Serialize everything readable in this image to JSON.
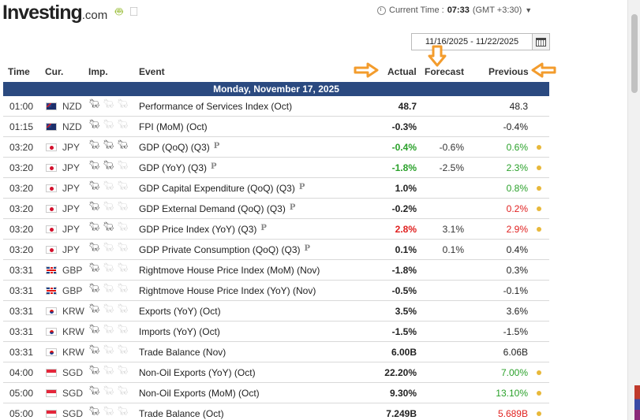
{
  "brand": {
    "name": "Investing",
    "suffix": ".com"
  },
  "os_icons": [
    "android-icon",
    "apple-icon"
  ],
  "current_time": {
    "label": "Current Time :",
    "value": "07:33",
    "timezone": "(GMT +3:30)"
  },
  "date_range": "11/16/2025 - 11/22/2025",
  "columns": {
    "time": "Time",
    "cur": "Cur.",
    "imp": "Imp.",
    "event": "Event",
    "actual": "Actual",
    "forecast": "Forecast",
    "previous": "Previous"
  },
  "day_header": "Monday, November 17, 2025",
  "colors": {
    "header_bg": "#2b4a80",
    "green": "#2aa12a",
    "red": "#e0201f",
    "arrow": "#f39c2d",
    "dot": "#e8b83a"
  },
  "rows": [
    {
      "time": "01:00",
      "currency": "NZD",
      "flag": "nzd",
      "importance": 1,
      "event": "Performance of Services Index (Oct)",
      "prelim": "",
      "actual": "48.7",
      "actual_color": "",
      "forecast": "",
      "previous": "48.3",
      "previous_color": "",
      "dot": false
    },
    {
      "time": "01:15",
      "currency": "NZD",
      "flag": "nzd",
      "importance": 1,
      "event": "FPI (MoM) (Oct)",
      "prelim": "",
      "actual": "-0.3%",
      "actual_color": "",
      "forecast": "",
      "previous": "-0.4%",
      "previous_color": "",
      "dot": false
    },
    {
      "time": "03:20",
      "currency": "JPY",
      "flag": "jpy",
      "importance": 3,
      "event": "GDP (QoQ) (Q3)",
      "prelim": "P",
      "actual": "-0.4%",
      "actual_color": "green",
      "forecast": "-0.6%",
      "previous": "0.6%",
      "previous_color": "green",
      "dot": true
    },
    {
      "time": "03:20",
      "currency": "JPY",
      "flag": "jpy",
      "importance": 2,
      "event": "GDP (YoY) (Q3)",
      "prelim": "P",
      "actual": "-1.8%",
      "actual_color": "green",
      "forecast": "-2.5%",
      "previous": "2.3%",
      "previous_color": "green",
      "dot": true
    },
    {
      "time": "03:20",
      "currency": "JPY",
      "flag": "jpy",
      "importance": 1,
      "event": "GDP Capital Expenditure (QoQ) (Q3)",
      "prelim": "P",
      "actual": "1.0%",
      "actual_color": "",
      "forecast": "",
      "previous": "0.8%",
      "previous_color": "green",
      "dot": true
    },
    {
      "time": "03:20",
      "currency": "JPY",
      "flag": "jpy",
      "importance": 1,
      "event": "GDP External Demand (QoQ) (Q3)",
      "prelim": "P",
      "actual": "-0.2%",
      "actual_color": "",
      "forecast": "",
      "previous": "0.2%",
      "previous_color": "red",
      "dot": true
    },
    {
      "time": "03:20",
      "currency": "JPY",
      "flag": "jpy",
      "importance": 2,
      "event": "GDP Price Index (YoY) (Q3)",
      "prelim": "P",
      "actual": "2.8%",
      "actual_color": "red",
      "forecast": "3.1%",
      "previous": "2.9%",
      "previous_color": "red",
      "dot": true
    },
    {
      "time": "03:20",
      "currency": "JPY",
      "flag": "jpy",
      "importance": 1,
      "event": "GDP Private Consumption (QoQ) (Q3)",
      "prelim": "P",
      "actual": "0.1%",
      "actual_color": "",
      "forecast": "0.1%",
      "previous": "0.4%",
      "previous_color": "",
      "dot": false
    },
    {
      "time": "03:31",
      "currency": "GBP",
      "flag": "gbp",
      "importance": 1,
      "event": "Rightmove House Price Index (MoM) (Nov)",
      "prelim": "",
      "actual": "-1.8%",
      "actual_color": "",
      "forecast": "",
      "previous": "0.3%",
      "previous_color": "",
      "dot": false
    },
    {
      "time": "03:31",
      "currency": "GBP",
      "flag": "gbp",
      "importance": 1,
      "event": "Rightmove House Price Index (YoY) (Nov)",
      "prelim": "",
      "actual": "-0.5%",
      "actual_color": "",
      "forecast": "",
      "previous": "-0.1%",
      "previous_color": "",
      "dot": false
    },
    {
      "time": "03:31",
      "currency": "KRW",
      "flag": "krw",
      "importance": 1,
      "event": "Exports (YoY) (Oct)",
      "prelim": "",
      "actual": "3.5%",
      "actual_color": "",
      "forecast": "",
      "previous": "3.6%",
      "previous_color": "",
      "dot": false
    },
    {
      "time": "03:31",
      "currency": "KRW",
      "flag": "krw",
      "importance": 1,
      "event": "Imports (YoY) (Oct)",
      "prelim": "",
      "actual": "-1.5%",
      "actual_color": "",
      "forecast": "",
      "previous": "-1.5%",
      "previous_color": "",
      "dot": false
    },
    {
      "time": "03:31",
      "currency": "KRW",
      "flag": "krw",
      "importance": 1,
      "event": "Trade Balance (Nov)",
      "prelim": "",
      "actual": "6.00B",
      "actual_color": "",
      "forecast": "",
      "previous": "6.06B",
      "previous_color": "",
      "dot": false
    },
    {
      "time": "04:00",
      "currency": "SGD",
      "flag": "sgd",
      "importance": 1,
      "event": "Non-Oil Exports (YoY) (Oct)",
      "prelim": "",
      "actual": "22.20%",
      "actual_color": "",
      "forecast": "",
      "previous": "7.00%",
      "previous_color": "green",
      "dot": true
    },
    {
      "time": "05:00",
      "currency": "SGD",
      "flag": "sgd",
      "importance": 1,
      "event": "Non-Oil Exports (MoM) (Oct)",
      "prelim": "",
      "actual": "9.30%",
      "actual_color": "",
      "forecast": "",
      "previous": "13.10%",
      "previous_color": "green",
      "dot": true
    },
    {
      "time": "05:00",
      "currency": "SGD",
      "flag": "sgd",
      "importance": 1,
      "event": "Trade Balance (Oct)",
      "prelim": "",
      "actual": "7.249B",
      "actual_color": "",
      "forecast": "",
      "previous": "5.689B",
      "previous_color": "red",
      "dot": true
    }
  ]
}
